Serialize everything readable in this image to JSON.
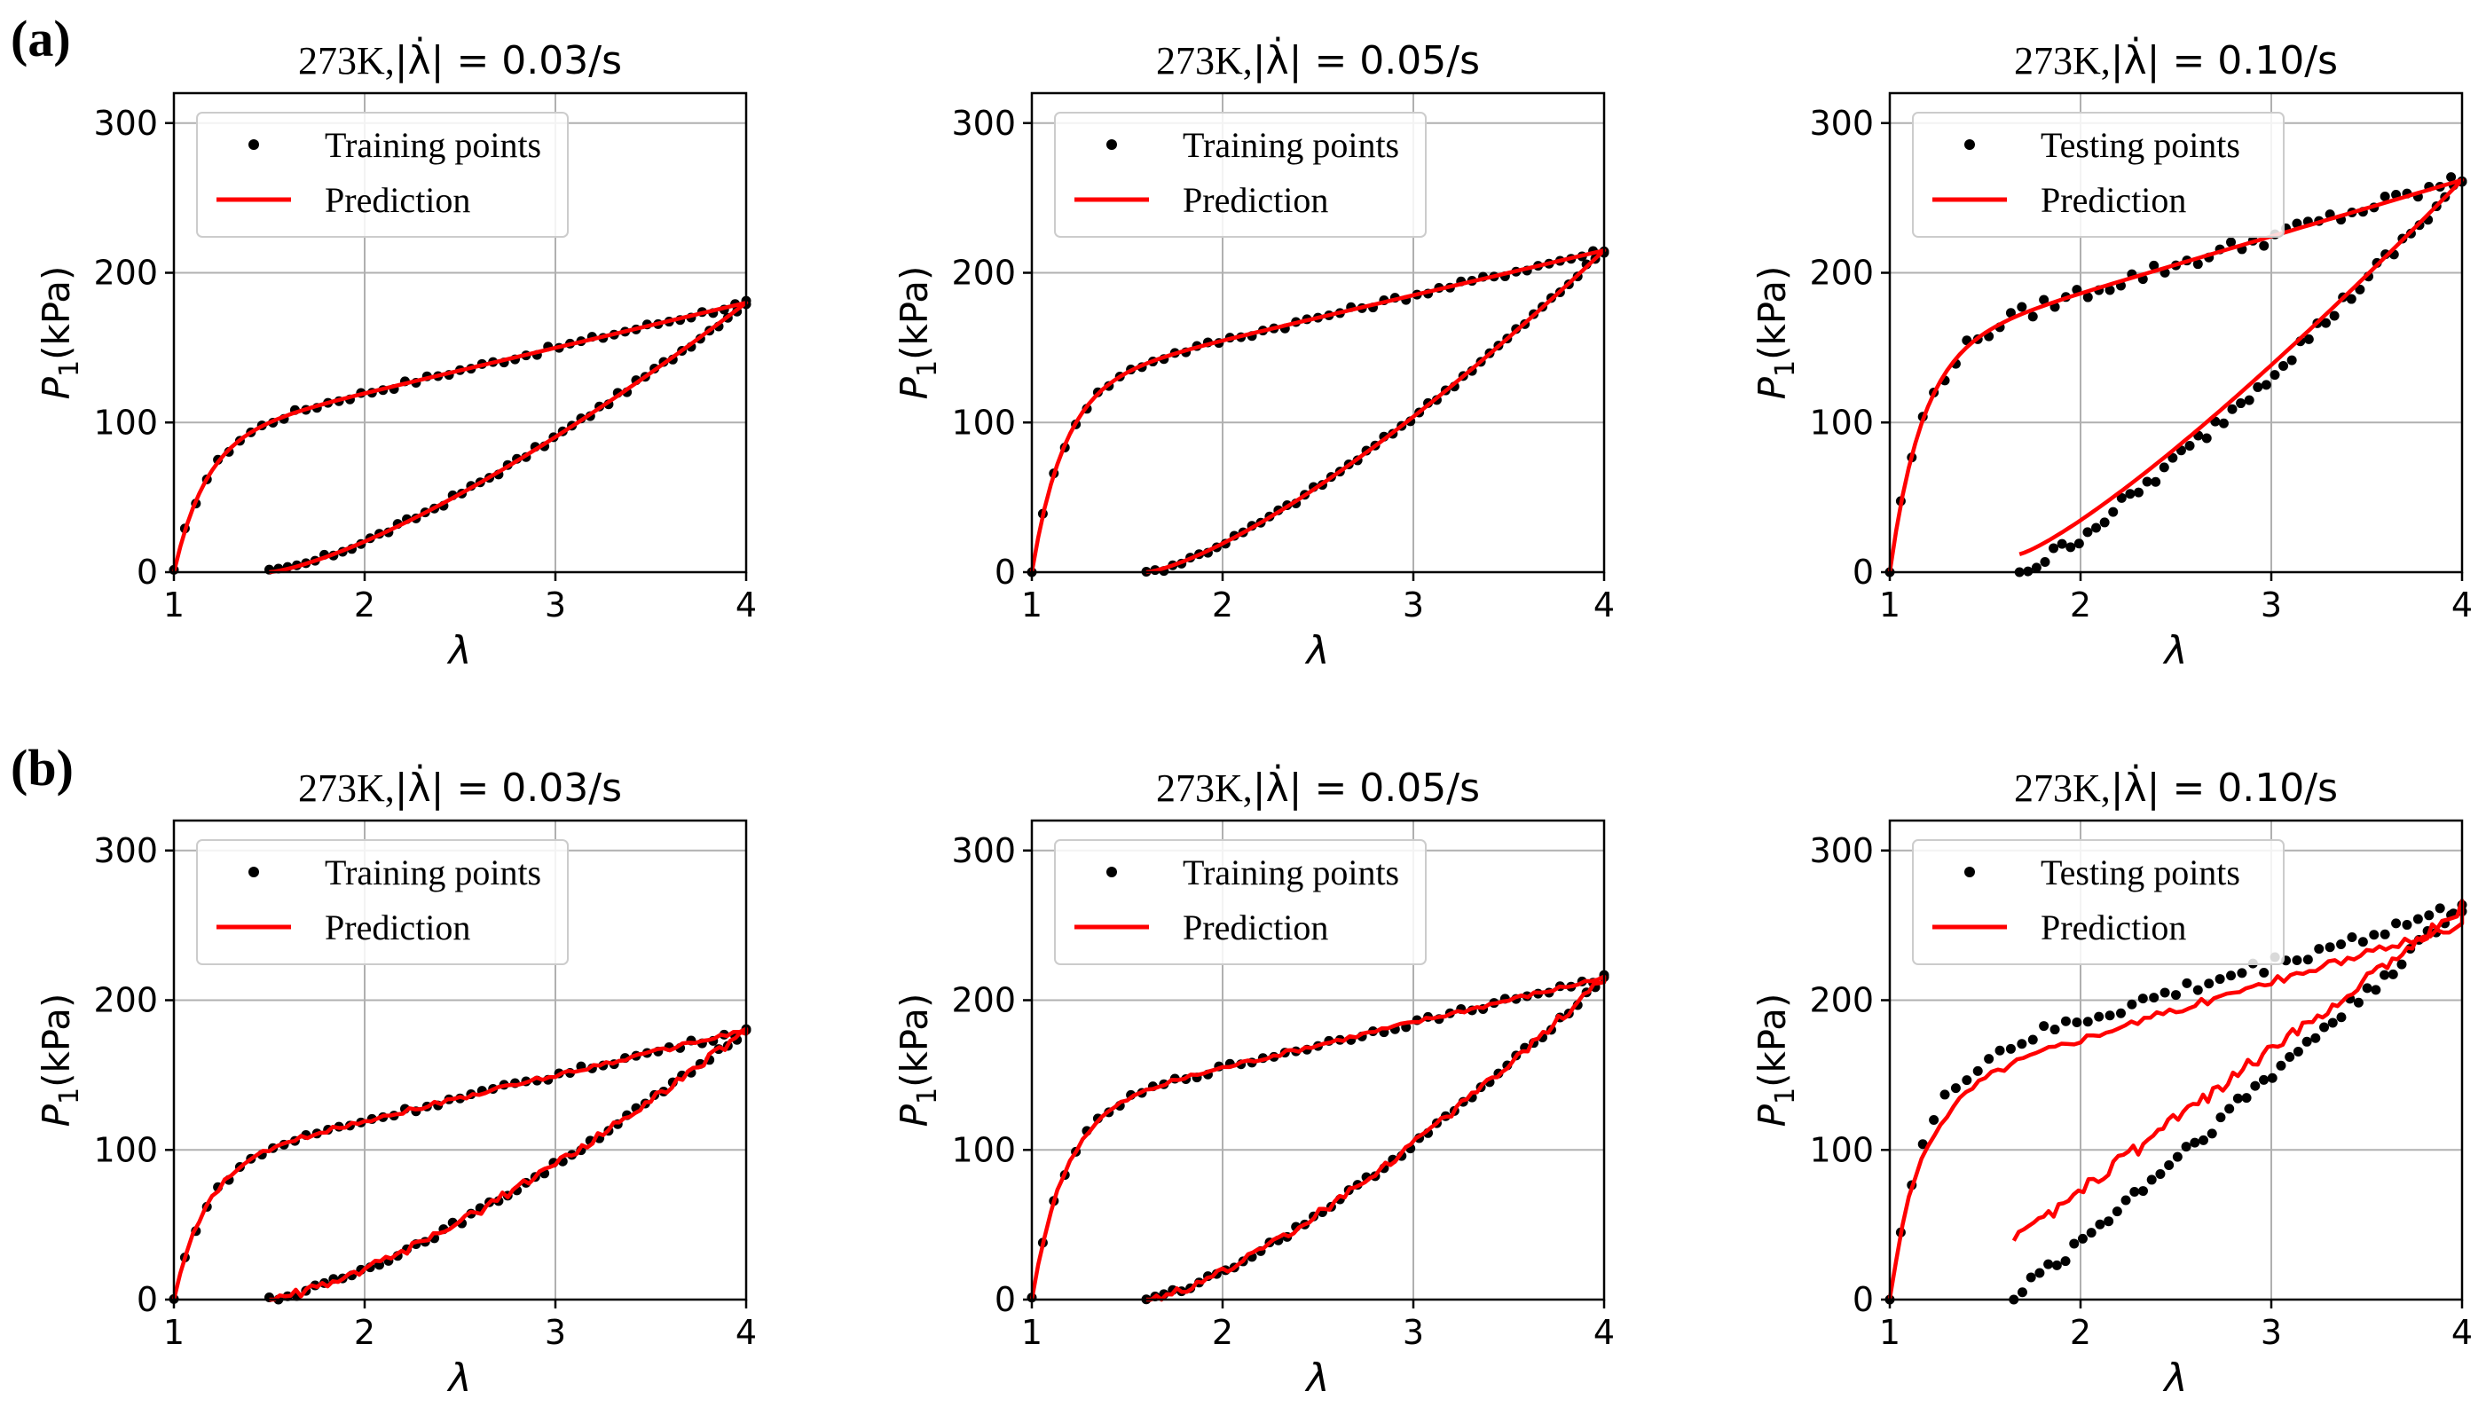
{
  "row_labels": [
    "(a)",
    "(b)"
  ],
  "chart_data": [
    {
      "panel": "a1",
      "type": "line",
      "title_prefix": "273K,",
      "title_rate": "|λ̇| = 0.03/s",
      "xlabel": "λ",
      "ylabel": "P1(kPa)",
      "xlim": [
        1,
        4
      ],
      "ylim": [
        0,
        320
      ],
      "xticks": [
        1,
        2,
        3,
        4
      ],
      "yticks": [
        0,
        100,
        200,
        300
      ],
      "grid": true,
      "legend": "top-left",
      "legend_points": "Training points",
      "legend_line": "Prediction",
      "peak": 180,
      "unload_start": 1.5,
      "loading_knee": 95,
      "loading_slope": 32,
      "points_role": "training",
      "points_offset": 0,
      "pred_offset": 0,
      "pred_jitter": 0,
      "pred_start_offset": 0,
      "unload_shape": 1.35
    },
    {
      "panel": "a2",
      "type": "line",
      "title_prefix": "273K,",
      "title_rate": "|λ̇| = 0.05/s",
      "xlabel": "λ",
      "ylabel": "P1(kPa)",
      "xlim": [
        1,
        4
      ],
      "ylim": [
        0,
        320
      ],
      "xticks": [
        1,
        2,
        3,
        4
      ],
      "yticks": [
        0,
        100,
        200,
        300
      ],
      "grid": true,
      "legend": "top-left",
      "legend_points": "Training points",
      "legend_line": "Prediction",
      "peak": 215,
      "unload_start": 1.6,
      "loading_knee": 125,
      "loading_slope": 30,
      "points_role": "training",
      "points_offset": 0,
      "pred_offset": 0,
      "pred_jitter": 0,
      "pred_start_offset": 0,
      "unload_shape": 1.35
    },
    {
      "panel": "a3",
      "type": "line",
      "title_prefix": "273K,",
      "title_rate": "|λ̇| = 0.10/s",
      "xlabel": "λ",
      "ylabel": "P1(kPa)",
      "xlim": [
        1,
        4
      ],
      "ylim": [
        0,
        320
      ],
      "xticks": [
        1,
        2,
        3,
        4
      ],
      "yticks": [
        0,
        100,
        200,
        300
      ],
      "grid": true,
      "legend": "top-left",
      "legend_points": "Testing points",
      "legend_line": "Prediction",
      "peak": 262,
      "unload_start": 1.68,
      "loading_knee": 150,
      "loading_slope": 38,
      "points_role": "testing",
      "points_offset": 0,
      "pred_offset": 0,
      "pred_jitter": 0,
      "pred_start_offset": 12,
      "unload_shape": 1.2
    },
    {
      "panel": "b1",
      "type": "line",
      "title_prefix": "273K,",
      "title_rate": "|λ̇| = 0.03/s",
      "xlabel": "λ",
      "ylabel": "P1(kPa)",
      "xlim": [
        1,
        4
      ],
      "ylim": [
        0,
        320
      ],
      "xticks": [
        1,
        2,
        3,
        4
      ],
      "yticks": [
        0,
        100,
        200,
        300
      ],
      "grid": true,
      "legend": "top-left",
      "legend_points": "Training points",
      "legend_line": "Prediction",
      "peak": 180,
      "unload_start": 1.5,
      "loading_knee": 95,
      "loading_slope": 32,
      "points_role": "training",
      "points_offset": 0,
      "pred_offset": 0,
      "pred_jitter": 3,
      "pred_start_offset": 0,
      "unload_shape": 1.35
    },
    {
      "panel": "b2",
      "type": "line",
      "title_prefix": "273K,",
      "title_rate": "|λ̇| = 0.05/s",
      "xlabel": "λ",
      "ylabel": "P1(kPa)",
      "xlim": [
        1,
        4
      ],
      "ylim": [
        0,
        320
      ],
      "xticks": [
        1,
        2,
        3,
        4
      ],
      "yticks": [
        0,
        100,
        200,
        300
      ],
      "grid": true,
      "legend": "top-left",
      "legend_points": "Training points",
      "legend_line": "Prediction",
      "peak": 215,
      "unload_start": 1.6,
      "loading_knee": 125,
      "loading_slope": 30,
      "points_role": "training",
      "points_offset": 0,
      "pred_offset": 0,
      "pred_jitter": 3,
      "pred_start_offset": 0,
      "unload_shape": 1.35
    },
    {
      "panel": "b3",
      "type": "line",
      "title_prefix": "273K,",
      "title_rate": "|λ̇| = 0.10/s",
      "xlabel": "λ",
      "ylabel": "P1(kPa)",
      "xlim": [
        1,
        4
      ],
      "ylim": [
        0,
        320
      ],
      "xticks": [
        1,
        2,
        3,
        4
      ],
      "yticks": [
        0,
        100,
        200,
        300
      ],
      "grid": true,
      "legend": "top-left",
      "legend_points": "Testing points",
      "legend_line": "Prediction",
      "peak": 262,
      "unload_start": 1.65,
      "loading_knee": 150,
      "loading_slope": 38,
      "points_role": "testing",
      "points_offset": 0,
      "pred_offset": -12,
      "pred_jitter": 5,
      "pred_start_offset": 40,
      "unload_shape": 1.0
    }
  ],
  "colors": {
    "points": "#000000",
    "prediction": "#ff0000",
    "grid": "#b0b0b0",
    "axes": "#000000"
  }
}
